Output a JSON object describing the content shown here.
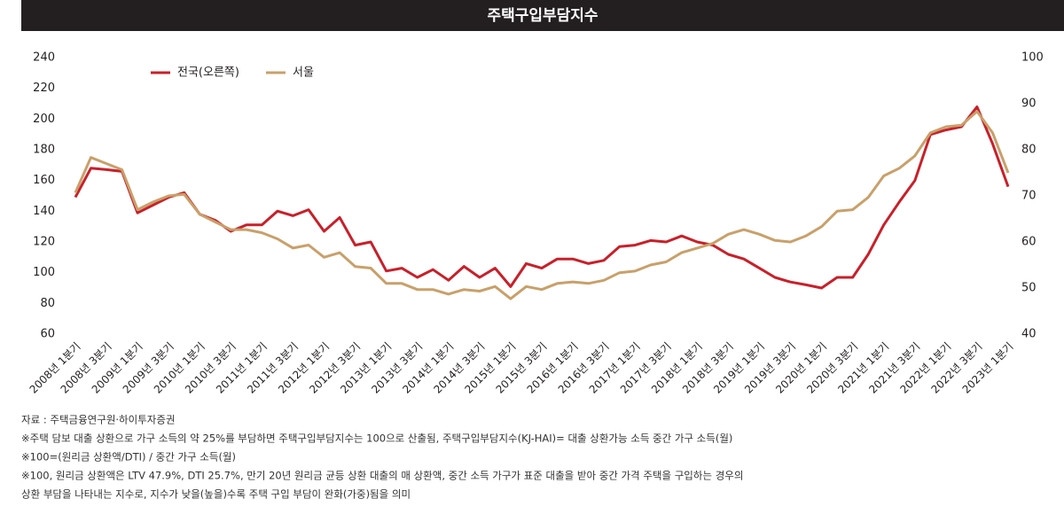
{
  "chart_data": {
    "type": "line",
    "title": "주택구입부담지수",
    "categories": [
      "2008년 1분기",
      null,
      "2008년 3분기",
      null,
      "2009년 1분기",
      null,
      "2009년 3분기",
      null,
      "2010년 1분기",
      null,
      "2010년 3분기",
      null,
      "2011년 1분기",
      null,
      "2011년 3분기",
      null,
      "2012년 1분기",
      null,
      "2012년 3분기",
      null,
      "2013년 1분기",
      null,
      "2013년 3분기",
      null,
      "2014년 1분기",
      null,
      "2014년 3분기",
      null,
      "2015년 1분기",
      null,
      "2015년 3분기",
      null,
      "2016년 1분기",
      null,
      "2016년 3분기",
      null,
      "2017년 1분기",
      null,
      "2017년 3분기",
      null,
      "2018년 1분기",
      null,
      "2018년 3분기",
      null,
      "2019년 1분기",
      null,
      "2019년 3분기",
      null,
      "2020년 1분기",
      null,
      "2020년 3분기",
      null,
      "2021년 1분기",
      null,
      "2021년 3분기",
      null,
      "2022년 1분기",
      null,
      "2022년 3분기",
      null,
      "2023년 1분기"
    ],
    "series": [
      {
        "name": "전국(오른쪽)",
        "color": "#c8202a",
        "axis": "y2",
        "values": [
          69.7,
          76,
          75.7,
          75.3,
          66.3,
          68,
          69.7,
          70.7,
          66,
          64.7,
          62.3,
          63.7,
          63.7,
          66.7,
          65.7,
          67,
          62.3,
          65.3,
          59.3,
          60,
          53.7,
          54.3,
          52.3,
          54,
          51.7,
          54.7,
          52.3,
          54.3,
          50.3,
          55.3,
          54.3,
          56.3,
          56.3,
          55.3,
          56,
          59,
          59.3,
          60.3,
          60,
          61.3,
          60,
          59.3,
          57.3,
          56.3,
          54.3,
          52.3,
          51.3,
          50.7,
          50,
          52.3,
          52.3,
          57.3,
          63.7,
          68.7,
          73.3,
          83.3,
          84.3,
          85,
          89.3,
          81.3,
          72
        ]
      },
      {
        "name": "서울",
        "color": "#c9a06a",
        "values": [
          152,
          175,
          171,
          167,
          141,
          146,
          150,
          151,
          138,
          133,
          128,
          128,
          126,
          122,
          116,
          118,
          110,
          113,
          104,
          103,
          93,
          93,
          89,
          89,
          86,
          89,
          88,
          91,
          83,
          91,
          89,
          93,
          94,
          93,
          95,
          100,
          101,
          105,
          107,
          113,
          116,
          119,
          125,
          128,
          125,
          121,
          120,
          124,
          130,
          140,
          141,
          149,
          163,
          168,
          176,
          191,
          195,
          196,
          205,
          191,
          165
        ]
      }
    ],
    "ylim": [
      60,
      240
    ],
    "yticks": [
      60,
      80,
      100,
      120,
      140,
      160,
      180,
      200,
      220,
      240
    ],
    "y2lim": [
      40,
      100
    ],
    "y2ticks": [
      40,
      50,
      60,
      70,
      80,
      90,
      100
    ],
    "legend": "top-left",
    "source": "자료 : 주택금융연구원·하이투자증권",
    "notes": [
      "※주택 담보 대출 상환으로 가구 소득의 약 25%를 부담하면 주택구입부담지수는 100으로 산출됨, 주택구입부담지수(KJ-HAI)= 대출 상환가능 소득 중간 가구 소득(월)",
      "※100=(원리금 상환액/DTI) / 중간 가구 소득(월)",
      "※100, 원리금 상환액은 LTV 47.9%, DTI 25.7%, 만기 20년 원리금 균등 상환 대출의 매 상환액, 중간 소득 가구가 표준 대출을 받아 중간 가격 주택을 구입하는 경우의",
      "상환 부담을 나타내는 지수로, 지수가 낮을(높을)수록 주택 구입 부담이 완화(가중)됨을 의미"
    ]
  }
}
